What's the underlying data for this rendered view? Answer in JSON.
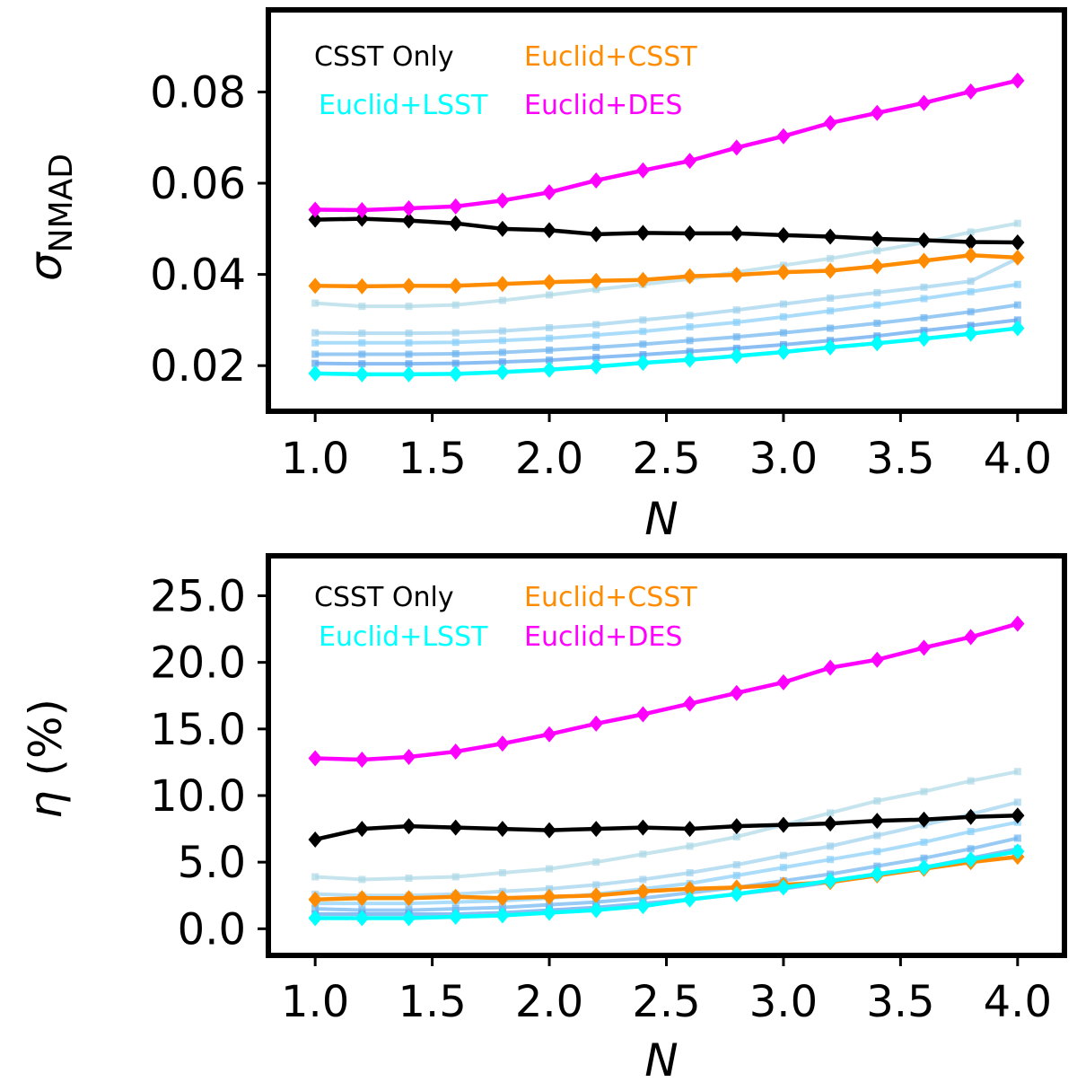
{
  "chart_data": [
    {
      "type": "line",
      "id": "top",
      "ylabel_symbol": "σ",
      "ylabel_subscript": "NMAD",
      "xlabel": "N",
      "x": [
        1.0,
        1.2,
        1.4,
        1.6,
        1.8,
        2.0,
        2.2,
        2.4,
        2.6,
        2.8,
        3.0,
        3.2,
        3.4,
        3.6,
        3.8,
        4.0
      ],
      "xlim": [
        0.8,
        4.2
      ],
      "ylim": [
        0.01,
        0.098
      ],
      "xticks": [
        1.0,
        1.5,
        2.0,
        2.5,
        3.0,
        3.5,
        4.0
      ],
      "xtick_labels": [
        "1.0",
        "1.5",
        "2.0",
        "2.5",
        "3.0",
        "3.5",
        "4.0"
      ],
      "yticks": [
        0.02,
        0.04,
        0.06,
        0.08
      ],
      "ytick_labels": [
        "0.02",
        "0.04",
        "0.06",
        "0.08"
      ],
      "legend": [
        {
          "label": "CSST Only",
          "color": "#000000"
        },
        {
          "label": "Euclid+CSST",
          "color": "#ff8c00"
        },
        {
          "label": "Euclid+LSST",
          "color": "#00ffff"
        },
        {
          "label": "Euclid+DES",
          "color": "#ff00ff"
        }
      ],
      "background_series": [
        {
          "color": "#add8e6",
          "values": [
            0.0337,
            0.033,
            0.033,
            0.0333,
            0.0343,
            0.0355,
            0.0367,
            0.0378,
            0.039,
            0.0405,
            0.042,
            0.0435,
            0.0452,
            0.047,
            0.0493,
            0.0512
          ]
        },
        {
          "color": "#9cd0ec",
          "values": [
            0.0272,
            0.0271,
            0.0271,
            0.0272,
            0.0276,
            0.0283,
            0.029,
            0.03,
            0.031,
            0.0322,
            0.0335,
            0.0348,
            0.036,
            0.0372,
            0.0385,
            0.0435
          ]
        },
        {
          "color": "#87cefa",
          "values": [
            0.025,
            0.025,
            0.025,
            0.0251,
            0.0255,
            0.026,
            0.0267,
            0.0275,
            0.0285,
            0.0295,
            0.0307,
            0.032,
            0.0333,
            0.0347,
            0.0362,
            0.0378
          ]
        },
        {
          "color": "#6cb4f0",
          "values": [
            0.0225,
            0.0225,
            0.0225,
            0.0226,
            0.0229,
            0.0234,
            0.024,
            0.0247,
            0.0255,
            0.0263,
            0.0272,
            0.0282,
            0.0293,
            0.0305,
            0.0318,
            0.0333
          ]
        },
        {
          "color": "#5aa2ee",
          "values": [
            0.0205,
            0.0204,
            0.0204,
            0.0205,
            0.0208,
            0.0212,
            0.0218,
            0.0224,
            0.0231,
            0.0238,
            0.0246,
            0.0255,
            0.0265,
            0.0277,
            0.0288,
            0.03
          ]
        }
      ],
      "series": [
        {
          "name": "CSST Only",
          "color": "#000000",
          "values": [
            0.052,
            0.0522,
            0.0518,
            0.0512,
            0.05,
            0.0497,
            0.0488,
            0.0491,
            0.049,
            0.049,
            0.0486,
            0.0483,
            0.0478,
            0.0475,
            0.0471,
            0.047
          ]
        },
        {
          "name": "Euclid+CSST",
          "color": "#ff8c00",
          "values": [
            0.0375,
            0.0374,
            0.0375,
            0.0375,
            0.0379,
            0.0383,
            0.0386,
            0.0388,
            0.0396,
            0.0399,
            0.0405,
            0.0408,
            0.0418,
            0.043,
            0.0442,
            0.0437
          ]
        },
        {
          "name": "Euclid+LSST",
          "color": "#00ffff",
          "values": [
            0.0183,
            0.0181,
            0.0181,
            0.0182,
            0.0186,
            0.0191,
            0.0198,
            0.0206,
            0.0213,
            0.0221,
            0.023,
            0.024,
            0.0249,
            0.0259,
            0.027,
            0.0282
          ]
        },
        {
          "name": "Euclid+DES",
          "color": "#ff00ff",
          "values": [
            0.0542,
            0.0541,
            0.0545,
            0.0549,
            0.0562,
            0.058,
            0.0606,
            0.0628,
            0.0649,
            0.0678,
            0.0703,
            0.0732,
            0.0754,
            0.0776,
            0.0801,
            0.0825
          ]
        }
      ]
    },
    {
      "type": "line",
      "id": "bottom",
      "ylabel_symbol": "η",
      "ylabel_text": " (%)",
      "xlabel": "N",
      "x": [
        1.0,
        1.2,
        1.4,
        1.6,
        1.8,
        2.0,
        2.2,
        2.4,
        2.6,
        2.8,
        3.0,
        3.2,
        3.4,
        3.6,
        3.8,
        4.0
      ],
      "xlim": [
        0.8,
        4.2
      ],
      "ylim": [
        -2.0,
        28.0
      ],
      "xticks": [
        1.0,
        1.5,
        2.0,
        2.5,
        3.0,
        3.5,
        4.0
      ],
      "xtick_labels": [
        "1.0",
        "1.5",
        "2.0",
        "2.5",
        "3.0",
        "3.5",
        "4.0"
      ],
      "yticks": [
        0.0,
        5.0,
        10.0,
        15.0,
        20.0,
        25.0
      ],
      "ytick_labels": [
        "0.0",
        "5.0",
        "10.0",
        "15.0",
        "20.0",
        "25.0"
      ],
      "legend": [
        {
          "label": "CSST Only",
          "color": "#000000"
        },
        {
          "label": "Euclid+CSST",
          "color": "#ff8c00"
        },
        {
          "label": "Euclid+LSST",
          "color": "#00ffff"
        },
        {
          "label": "Euclid+DES",
          "color": "#ff00ff"
        }
      ],
      "background_series": [
        {
          "color": "#add8e6",
          "values": [
            3.9,
            3.7,
            3.8,
            3.9,
            4.2,
            4.5,
            5.0,
            5.6,
            6.2,
            6.9,
            7.8,
            8.7,
            9.6,
            10.3,
            11.1,
            11.8
          ]
        },
        {
          "color": "#9cd0ec",
          "values": [
            2.6,
            2.5,
            2.5,
            2.6,
            2.8,
            3.0,
            3.3,
            3.7,
            4.2,
            4.8,
            5.5,
            6.2,
            7.0,
            7.8,
            8.6,
            9.5
          ]
        },
        {
          "color": "#87cefa",
          "values": [
            1.9,
            1.9,
            1.9,
            2.0,
            2.1,
            2.3,
            2.6,
            3.0,
            3.4,
            4.0,
            4.6,
            5.2,
            5.8,
            6.5,
            7.3,
            8.0
          ]
        },
        {
          "color": "#6cb4f0",
          "values": [
            1.5,
            1.4,
            1.4,
            1.5,
            1.6,
            1.8,
            2.0,
            2.3,
            2.7,
            3.1,
            3.6,
            4.1,
            4.7,
            5.3,
            6.0,
            6.8
          ]
        },
        {
          "color": "#5aa2ee",
          "values": [
            1.1,
            1.1,
            1.1,
            1.1,
            1.2,
            1.4,
            1.6,
            1.9,
            2.2,
            2.6,
            3.0,
            3.5,
            4.0,
            4.6,
            5.3,
            6.0
          ]
        }
      ],
      "series": [
        {
          "name": "CSST Only",
          "color": "#000000",
          "values": [
            6.7,
            7.5,
            7.7,
            7.6,
            7.5,
            7.4,
            7.5,
            7.6,
            7.5,
            7.7,
            7.8,
            7.9,
            8.1,
            8.2,
            8.4,
            8.5
          ]
        },
        {
          "name": "Euclid+CSST",
          "color": "#ff8c00",
          "values": [
            2.2,
            2.3,
            2.3,
            2.4,
            2.3,
            2.4,
            2.5,
            2.8,
            3.0,
            3.1,
            3.3,
            3.5,
            4.0,
            4.5,
            5.0,
            5.4
          ]
        },
        {
          "name": "Euclid+LSST",
          "color": "#00ffff",
          "values": [
            0.8,
            0.8,
            0.8,
            0.9,
            1.0,
            1.2,
            1.4,
            1.7,
            2.2,
            2.6,
            3.1,
            3.6,
            4.1,
            4.6,
            5.2,
            5.8
          ]
        },
        {
          "name": "Euclid+DES",
          "color": "#ff00ff",
          "values": [
            12.8,
            12.7,
            12.9,
            13.3,
            13.9,
            14.6,
            15.4,
            16.1,
            16.9,
            17.7,
            18.5,
            19.6,
            20.2,
            21.1,
            21.9,
            22.9
          ]
        }
      ]
    }
  ]
}
